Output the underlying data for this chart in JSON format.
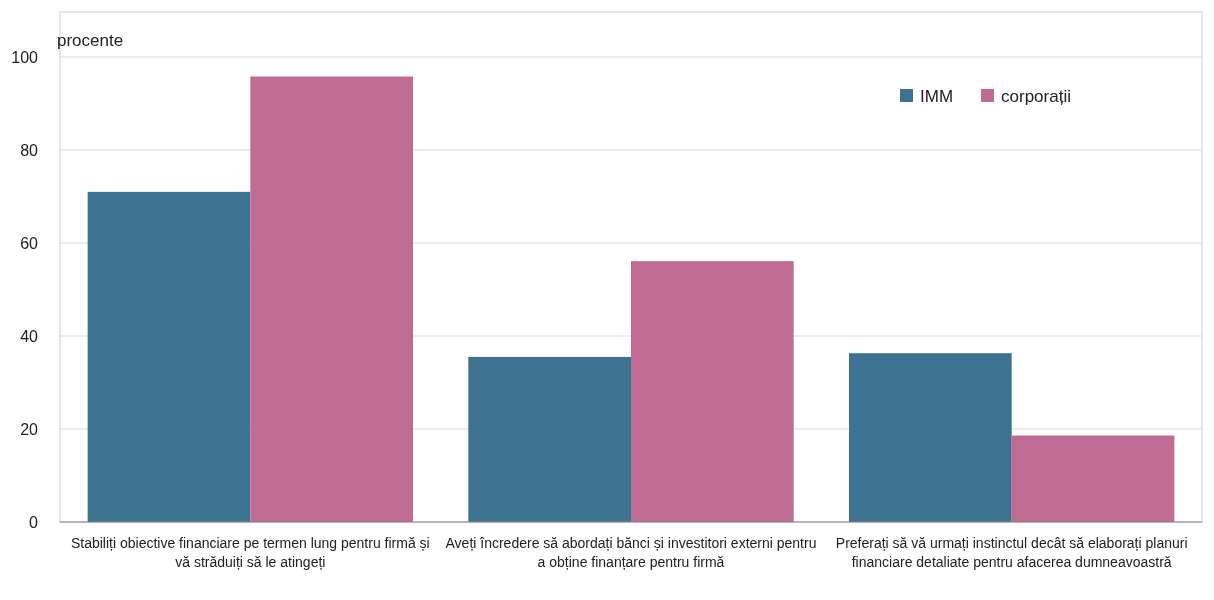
{
  "chart_data": {
    "type": "bar",
    "ylabel": "procente",
    "categories": [
      "Stabiliți obiective financiare pe termen lung pentru firmă și vă străduiți să le atingeți",
      "Aveți încredere să abordați bănci și investitori externi pentru a obține finanțare pentru firmă",
      "Preferați să vă urmați instinctul decât să elaborați planuri financiare detaliate pentru afacerea dumneavoastră"
    ],
    "series": [
      {
        "name": "IMM",
        "color": "#3d7391",
        "values": [
          71,
          35.5,
          36.3
        ]
      },
      {
        "name": "corporații",
        "color": "#bf6b94",
        "values": [
          95.8,
          56.1,
          18.6
        ]
      }
    ],
    "ylim": [
      0,
      100
    ],
    "yticks": [
      0,
      20,
      40,
      60,
      80,
      100
    ],
    "grid": "y",
    "legend": "top right"
  }
}
